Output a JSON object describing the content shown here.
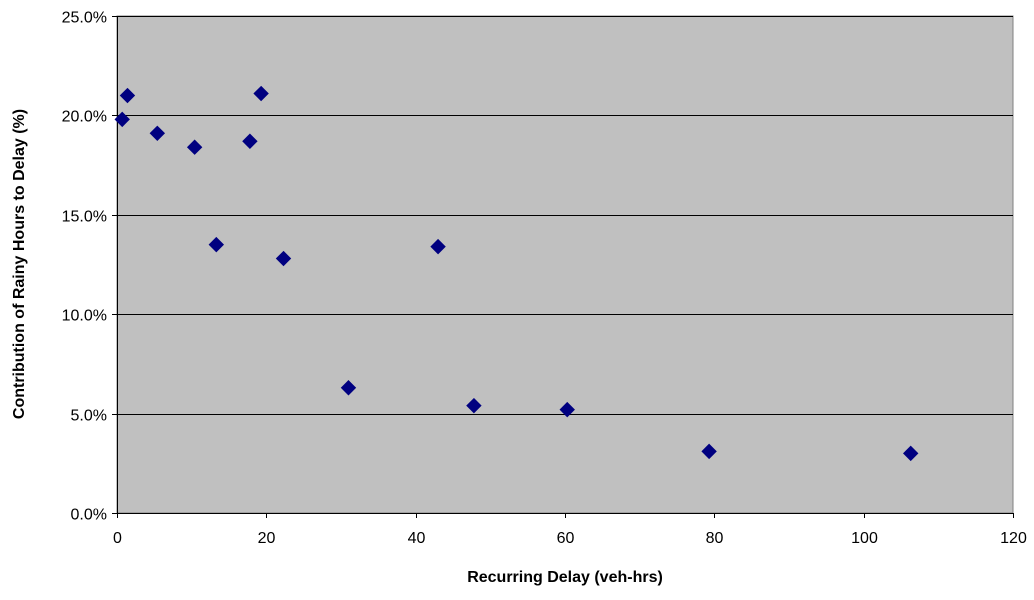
{
  "chart_data": {
    "type": "scatter",
    "title": "",
    "xlabel": "Recurring Delay (veh-hrs)",
    "ylabel": "Contribution of Rainy Hours to Delay (%)",
    "xlim": [
      0,
      120
    ],
    "ylim": [
      0,
      25
    ],
    "x_ticks": [
      0,
      20,
      40,
      60,
      80,
      100,
      120
    ],
    "x_tick_labels": [
      "0",
      "20",
      "40",
      "60",
      "80",
      "100",
      "120"
    ],
    "y_ticks": [
      0,
      5,
      10,
      15,
      20,
      25
    ],
    "y_tick_labels": [
      "0.0%",
      "5.0%",
      "10.0%",
      "15.0%",
      "20.0%",
      "25.0%"
    ],
    "grid": "horizontal",
    "legend": "none",
    "plot_background": "#c0c0c0",
    "marker": "diamond",
    "marker_color": "#000080",
    "series": [
      {
        "points": [
          {
            "x": 0.7,
            "y": 19.8
          },
          {
            "x": 1.4,
            "y": 21.0
          },
          {
            "x": 5.4,
            "y": 19.1
          },
          {
            "x": 10.4,
            "y": 18.4
          },
          {
            "x": 13.3,
            "y": 13.5
          },
          {
            "x": 17.8,
            "y": 18.7
          },
          {
            "x": 19.3,
            "y": 21.1
          },
          {
            "x": 22.3,
            "y": 12.8
          },
          {
            "x": 31.0,
            "y": 6.3
          },
          {
            "x": 43.0,
            "y": 13.4
          },
          {
            "x": 47.8,
            "y": 5.4
          },
          {
            "x": 60.3,
            "y": 5.2
          },
          {
            "x": 79.3,
            "y": 3.1
          },
          {
            "x": 106.3,
            "y": 3.0
          }
        ]
      }
    ]
  }
}
